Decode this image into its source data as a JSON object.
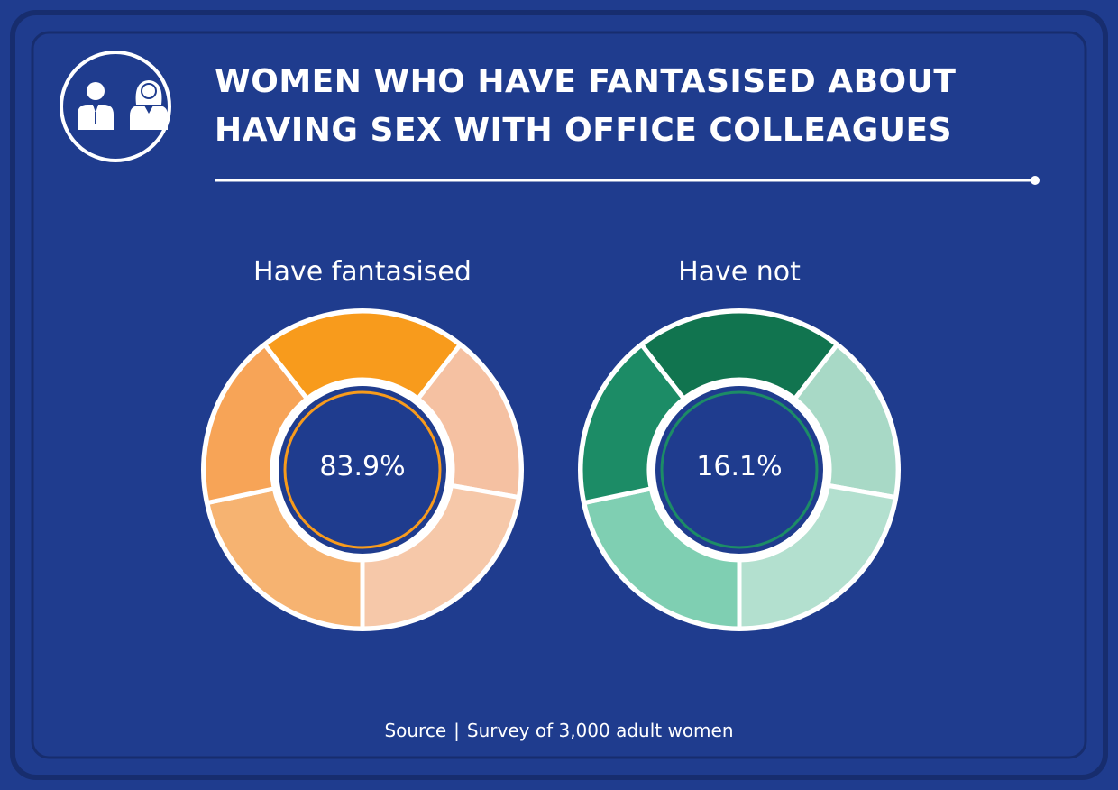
{
  "title": {
    "line1": "Women who have fantasised about",
    "line2": "having sex with office colleagues"
  },
  "icon": "male-and-female-office-workers-icon",
  "colors": {
    "background": "#1f3c8e",
    "frame": "#172d6e",
    "fantasised": [
      "#f89b1c",
      "#f7a457",
      "#f6b371",
      "#f5c1a2",
      "#f6c8a9"
    ],
    "not": [
      "#11744f",
      "#1c8c66",
      "#7fcfb2",
      "#a8d9c6",
      "#b3e0cf"
    ]
  },
  "source": {
    "label": "Source",
    "separator": "|",
    "text": "Survey of 3,000 adult women"
  },
  "chart_data": [
    {
      "type": "pie",
      "variant": "donut",
      "label": "Have fantasised",
      "value": 83.9,
      "value_label": "83.9%",
      "accent": "#f89b1c"
    },
    {
      "type": "pie",
      "variant": "donut",
      "label": "Have not",
      "value": 16.1,
      "value_label": "16.1%",
      "accent": "#1c8c66"
    }
  ]
}
